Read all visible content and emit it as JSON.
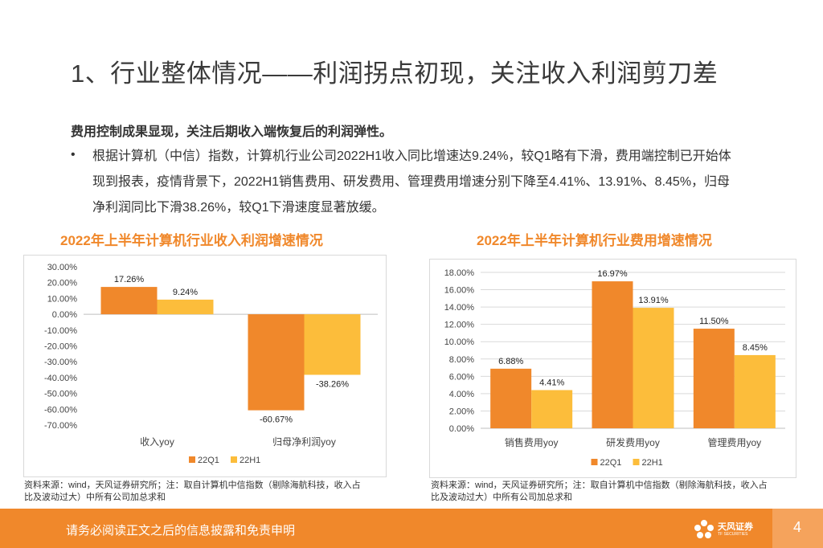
{
  "slide": {
    "title": "1、行业整体情况——利润拐点初现，关注收入利润剪刀差",
    "lead": "费用控制成果显现，关注后期收入端恢复后的利润弹性。",
    "bullet_marker": "•",
    "bullet": "根据计算机（中信）指数，计算机行业公司2022H1收入同比增速达9.24%，较Q1略有下滑，费用端控制已开始体现到报表，疫情背景下，2022H1销售费用、研发费用、管理费用增速分别下降至4.41%、13.91%、8.45%，归母净利润同比下滑38.26%，较Q1下滑速度显著放缓。"
  },
  "chart_data": [
    {
      "type": "bar",
      "title": "2022年上半年计算机行业收入利润增速情况",
      "categories": [
        "收入yoy",
        "归母净利润yoy"
      ],
      "series": [
        {
          "name": "22Q1",
          "values": [
            17.26,
            -60.67
          ],
          "labels": [
            "17.26%",
            "-60.67%"
          ],
          "color": "#f0882b"
        },
        {
          "name": "22H1",
          "values": [
            9.24,
            -38.26
          ],
          "labels": [
            "9.24%",
            "-38.26%"
          ],
          "color": "#fcbd3b"
        }
      ],
      "ylim": [
        -70,
        30
      ],
      "yticks": [
        "30.00%",
        "20.00%",
        "10.00%",
        "0.00%",
        "-10.00%",
        "-20.00%",
        "-30.00%",
        "-40.00%",
        "-50.00%",
        "-60.00%",
        "-70.00%"
      ],
      "ytick_values": [
        30,
        20,
        10,
        0,
        -10,
        -20,
        -30,
        -40,
        -50,
        -60,
        -70
      ],
      "grid": false,
      "legend": "bottom"
    },
    {
      "type": "bar",
      "title": "2022年上半年计算机行业费用增速情况",
      "categories": [
        "销售费用yoy",
        "研发费用yoy",
        "管理费用yoy"
      ],
      "series": [
        {
          "name": "22Q1",
          "values": [
            6.88,
            16.97,
            11.5
          ],
          "labels": [
            "6.88%",
            "16.97%",
            "11.50%"
          ],
          "color": "#f0882b"
        },
        {
          "name": "22H1",
          "values": [
            4.41,
            13.91,
            8.45
          ],
          "labels": [
            "4.41%",
            "13.91%",
            "8.45%"
          ],
          "color": "#fcbd3b"
        }
      ],
      "ylim": [
        0,
        18
      ],
      "yticks": [
        "18.00%",
        "16.00%",
        "14.00%",
        "12.00%",
        "10.00%",
        "8.00%",
        "6.00%",
        "4.00%",
        "2.00%",
        "0.00%"
      ],
      "ytick_values": [
        18,
        16,
        14,
        12,
        10,
        8,
        6,
        4,
        2,
        0
      ],
      "grid": true,
      "legend": "bottom"
    }
  ],
  "sources": [
    "资料来源：wind，天风证券研究所；注：取自计算机中信指数（剔除海航科技，收入占比及波动过大）中所有公司加总求和",
    "资料来源：wind，天风证券研究所；注：取自计算机中信指数（剔除海航科技，收入占比及波动过大）中所有公司加总求和"
  ],
  "footer": {
    "disclaimer": "请务必阅读正文之后的信息披露和免责申明",
    "logo_cn": "天风证券",
    "logo_en": "TF SECURITIES",
    "page_number": "4"
  },
  "colors": {
    "accent": "#f0882b",
    "secondary": "#fcbd3b",
    "footer": "#f0882b",
    "page_tab": "#f5a35c"
  }
}
